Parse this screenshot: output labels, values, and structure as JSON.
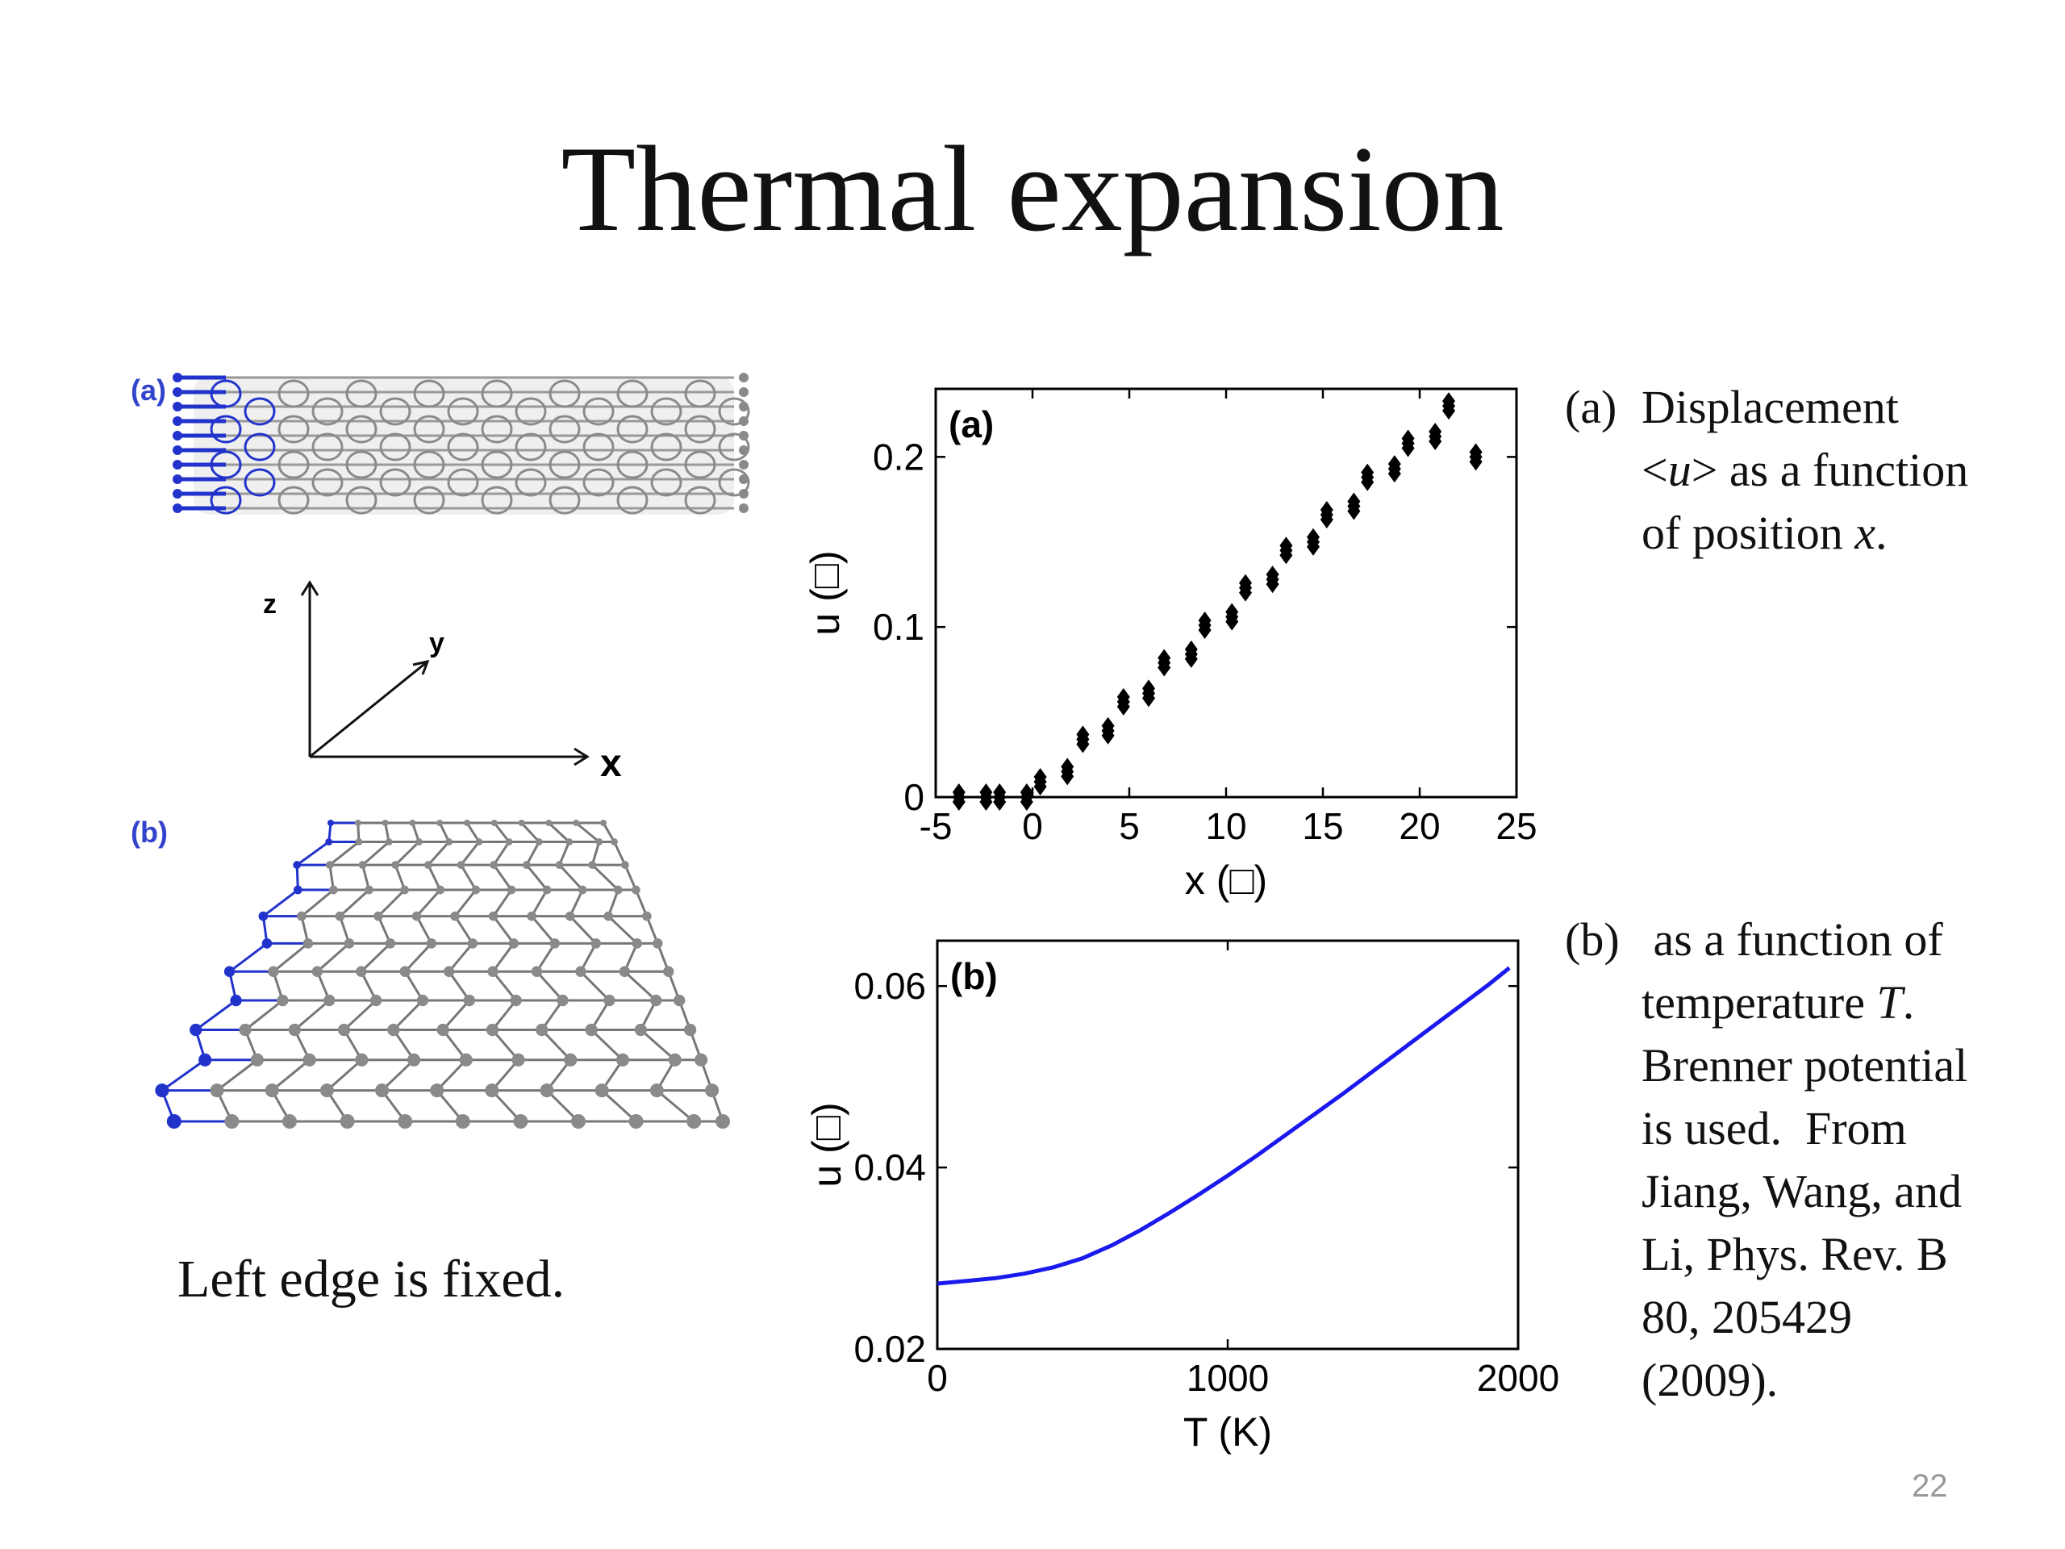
{
  "slide": {
    "title": "Thermal expansion",
    "page_number": "22",
    "left_note": "Left edge is fixed."
  },
  "illustrations": {
    "panel_a_label": "(a)",
    "panel_b_label": "(b)",
    "axis_z": "z",
    "axis_y": "y",
    "axis_x": "x",
    "colors": {
      "fixed_atoms": "#2233cc",
      "free_atoms": "#8a8a8a"
    }
  },
  "captions": {
    "a": {
      "tag": "(a)",
      "line1": "Displacement",
      "line2_pre": "<",
      "line2_var": "u",
      "line2_post": "> as a function",
      "line3_pre": "of position ",
      "line3_var": "x",
      "line3_post": "."
    },
    "b": {
      "tag": "(b)",
      "line1": " as a function of",
      "line2_pre": "temperature ",
      "line2_var": "T",
      "line2_post": ".",
      "line3": "Brenner potential",
      "line4": "is used.  From",
      "line5": "Jiang, Wang, and",
      "line6": "Li, Phys. Rev. B",
      "line7": "80, 205429",
      "line8": "(2009)."
    }
  },
  "chart_data": [
    {
      "type": "scatter",
      "panel_label": "(a)",
      "xlabel": "x (□)",
      "ylabel": "u (□)",
      "xlim": [
        -5,
        25
      ],
      "ylim": [
        0,
        0.24
      ],
      "xticks": [
        "-5",
        "0",
        "5",
        "10",
        "15",
        "20",
        "25"
      ],
      "yticks": [
        "0",
        "0.1",
        "0.2"
      ],
      "marker_color": "#000000",
      "points": [
        [
          -3.8,
          0.0
        ],
        [
          -2.4,
          0.0
        ],
        [
          -1.7,
          0.0
        ],
        [
          -0.3,
          0.0
        ],
        [
          0.4,
          0.009
        ],
        [
          1.8,
          0.015
        ],
        [
          2.6,
          0.034
        ],
        [
          3.9,
          0.039
        ],
        [
          4.7,
          0.056
        ],
        [
          6.0,
          0.061
        ],
        [
          6.8,
          0.079
        ],
        [
          8.2,
          0.084
        ],
        [
          8.9,
          0.101
        ],
        [
          10.3,
          0.106
        ],
        [
          11.0,
          0.123
        ],
        [
          12.4,
          0.128
        ],
        [
          13.1,
          0.145
        ],
        [
          14.5,
          0.15
        ],
        [
          15.2,
          0.166
        ],
        [
          16.6,
          0.171
        ],
        [
          17.3,
          0.188
        ],
        [
          18.7,
          0.193
        ],
        [
          19.4,
          0.208
        ],
        [
          20.8,
          0.212
        ],
        [
          21.5,
          0.23
        ],
        [
          22.9,
          0.2
        ]
      ]
    },
    {
      "type": "line",
      "panel_label": "(b)",
      "xlabel": "T (K)",
      "ylabel": "u (□)",
      "xlim": [
        0,
        2000
      ],
      "ylim": [
        0.02,
        0.065
      ],
      "xticks": [
        "0",
        "1000",
        "2000"
      ],
      "yticks": [
        "0.02",
        "0.04",
        "0.06"
      ],
      "line_color": "#1a1aee",
      "x": [
        0,
        100,
        200,
        300,
        400,
        500,
        600,
        700,
        800,
        900,
        1000,
        1100,
        1200,
        1300,
        1400,
        1500,
        1600,
        1700,
        1800,
        1900,
        1970
      ],
      "y": [
        0.0272,
        0.0275,
        0.0278,
        0.0283,
        0.029,
        0.03,
        0.0314,
        0.0331,
        0.035,
        0.037,
        0.0391,
        0.0413,
        0.0436,
        0.0459,
        0.0482,
        0.0506,
        0.053,
        0.0554,
        0.0578,
        0.0602,
        0.062
      ]
    }
  ]
}
